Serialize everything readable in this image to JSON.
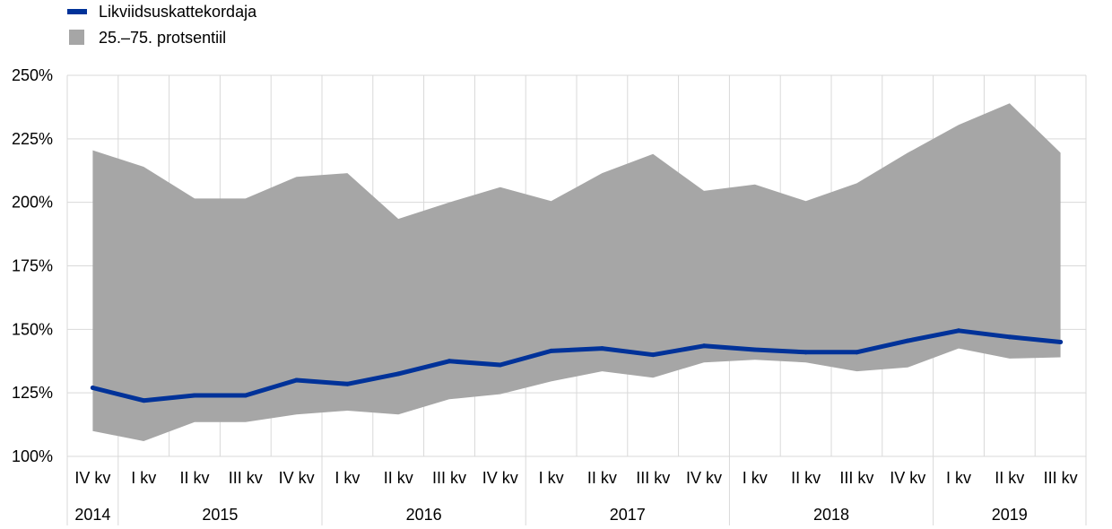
{
  "chart_data": {
    "type": "area",
    "legend": {
      "placement": "top-left",
      "items": [
        {
          "label": "Likviidsuskattekordaja",
          "kind": "line",
          "color": "#003299"
        },
        {
          "label": "25.–75. protsentiil",
          "kind": "area",
          "color": "#a6a6a6"
        }
      ]
    },
    "ylim": [
      100,
      250
    ],
    "yticks": [
      100,
      125,
      150,
      175,
      200,
      225,
      250
    ],
    "ytick_labels": [
      "100%",
      "125%",
      "150%",
      "175%",
      "200%",
      "225%",
      "250%"
    ],
    "grid": true,
    "categories": [
      "IV kv",
      "I kv",
      "II kv",
      "III kv",
      "IV kv",
      "I kv",
      "II kv",
      "III kv",
      "IV kv",
      "I kv",
      "II kv",
      "III kv",
      "IV kv",
      "I kv",
      "II kv",
      "III kv",
      "IV kv",
      "I kv",
      "II kv",
      "III kv"
    ],
    "years": [
      {
        "label": "2014",
        "count": 1
      },
      {
        "label": "2015",
        "count": 4
      },
      {
        "label": "2016",
        "count": 4
      },
      {
        "label": "2017",
        "count": 4
      },
      {
        "label": "2018",
        "count": 4
      },
      {
        "label": "2019",
        "count": 3
      }
    ],
    "series": [
      {
        "name": "Likviidsuskattekordaja",
        "type": "line",
        "color": "#003299",
        "values": [
          127,
          122,
          124,
          124,
          130,
          128.5,
          132.5,
          137.5,
          136,
          141.5,
          142.5,
          140,
          143.5,
          142,
          141,
          141,
          145.5,
          149.5,
          147,
          145
        ]
      },
      {
        "name": "25.–75. protsentiil",
        "type": "band",
        "color": "#a6a6a6",
        "lower": [
          110,
          106,
          113.5,
          113.5,
          116.5,
          118,
          116.5,
          122.5,
          124.5,
          129.5,
          133.5,
          131,
          137,
          138,
          137,
          133.5,
          135,
          142.5,
          138.5,
          139
        ],
        "upper": [
          220.5,
          214,
          201.5,
          201.5,
          210,
          211.5,
          193.5,
          200,
          206,
          200.5,
          211.5,
          219,
          204.5,
          207,
          200.5,
          207.5,
          219.5,
          230.5,
          239,
          219.5
        ]
      }
    ]
  }
}
